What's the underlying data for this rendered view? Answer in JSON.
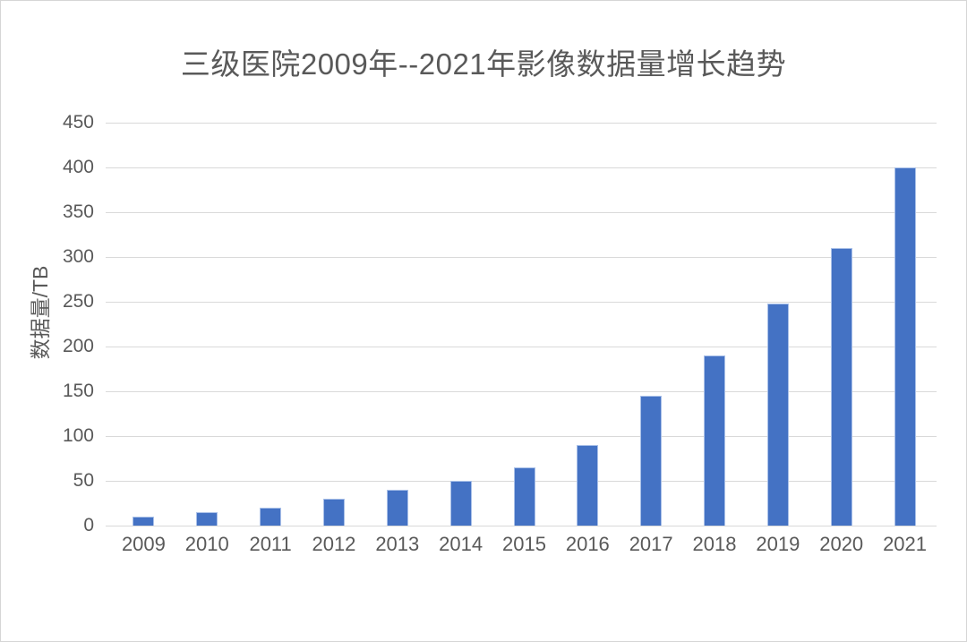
{
  "chart_data": {
    "type": "bar",
    "title": "三级医院2009年--2021年影像数据量增长趋势",
    "categories": [
      "2009",
      "2010",
      "2011",
      "2012",
      "2013",
      "2014",
      "2015",
      "2016",
      "2017",
      "2018",
      "2019",
      "2020",
      "2021"
    ],
    "values": [
      10,
      15,
      20,
      30,
      40,
      50,
      65,
      90,
      145,
      190,
      248,
      310,
      400
    ],
    "xlabel": "",
    "ylabel": "数据量/TB",
    "ylim": [
      0,
      450
    ],
    "yticks": [
      0,
      50,
      100,
      150,
      200,
      250,
      300,
      350,
      400,
      450
    ],
    "grid": "horizontal",
    "legend": "none",
    "colors": {
      "bar_fill": "#4472c4",
      "bar_border": "#a9c0e8",
      "gridline": "#d9d9d9",
      "text": "#595959",
      "frame_border": "#d6d6d6",
      "background": "#ffffff"
    }
  }
}
